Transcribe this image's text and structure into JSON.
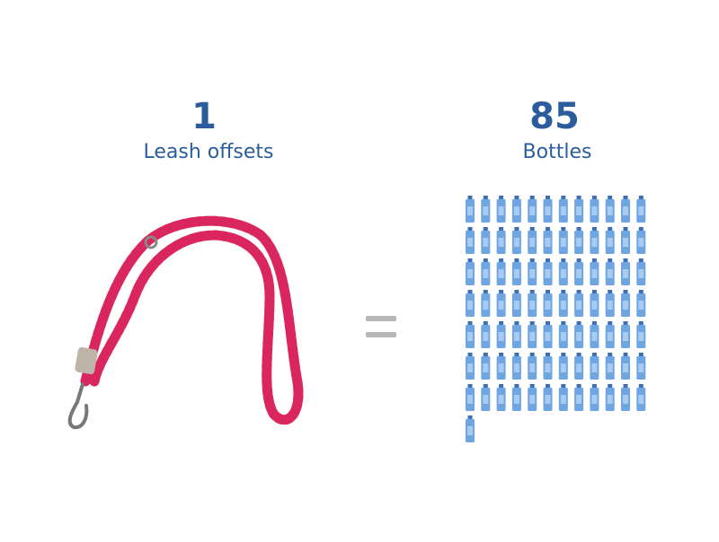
{
  "left": {
    "number": 1,
    "label": "Leash offsets"
  },
  "right": {
    "number": 85,
    "label": "Bottles"
  }
}
